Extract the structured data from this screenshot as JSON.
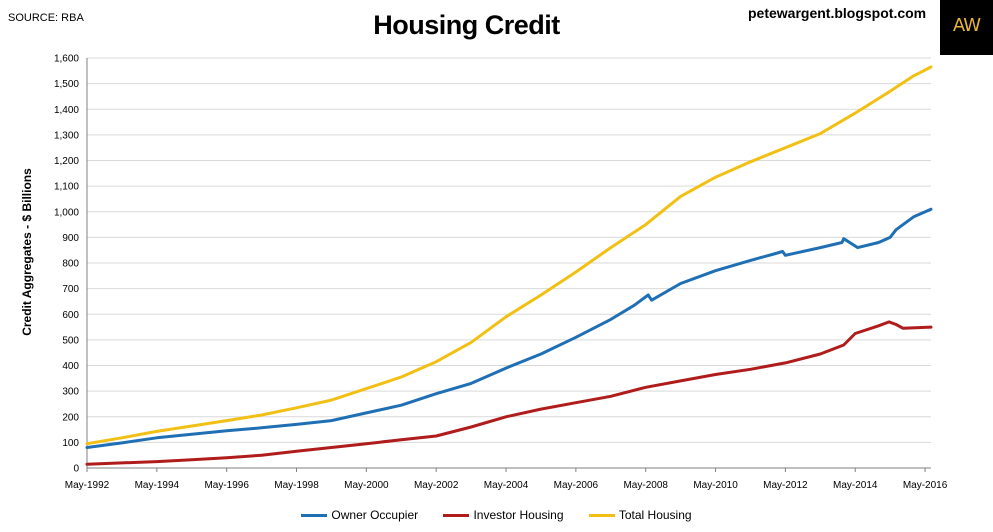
{
  "header": {
    "source": "SOURCE: RBA",
    "title": "Housing Credit",
    "blog": "petewargent.blogspot.com",
    "logo_text": "AW"
  },
  "chart_data": {
    "type": "line",
    "title": "Housing Credit",
    "xlabel": "",
    "ylabel": "Credit Aggregates - $ Billions",
    "ylim": [
      0,
      1600
    ],
    "yticks": [
      0,
      100,
      200,
      300,
      400,
      500,
      600,
      700,
      800,
      900,
      1000,
      1100,
      1200,
      1300,
      1400,
      1500,
      1600
    ],
    "xlim": [
      1992.33,
      2016.5
    ],
    "xticks": [
      {
        "label": "May-1992",
        "x": 1992.33
      },
      {
        "label": "May-1994",
        "x": 1994.33
      },
      {
        "label": "May-1996",
        "x": 1996.33
      },
      {
        "label": "May-1998",
        "x": 1998.33
      },
      {
        "label": "May-2000",
        "x": 2000.33
      },
      {
        "label": "May-2002",
        "x": 2002.33
      },
      {
        "label": "May-2004",
        "x": 2004.33
      },
      {
        "label": "May-2006",
        "x": 2006.33
      },
      {
        "label": "May-2008",
        "x": 2008.33
      },
      {
        "label": "May-2010",
        "x": 2010.33
      },
      {
        "label": "May-2012",
        "x": 2012.33
      },
      {
        "label": "May-2014",
        "x": 2014.33
      },
      {
        "label": "May-2016",
        "x": 2016.33
      }
    ],
    "grid": true,
    "legend_position": "bottom",
    "series": [
      {
        "name": "Owner Occupier",
        "color": "#1f6fb4",
        "x": [
          1992.33,
          1993.33,
          1994.33,
          1995.33,
          1996.33,
          1997.33,
          1998.33,
          1999.33,
          2000.33,
          2001.33,
          2002.33,
          2003.33,
          2004.33,
          2005.33,
          2006.33,
          2007.33,
          2008.0,
          2008.4,
          2008.5,
          2009.33,
          2010.33,
          2011.33,
          2012.0,
          2012.25,
          2012.33,
          2013.33,
          2013.95,
          2014.0,
          2014.4,
          2015.0,
          2015.33,
          2015.5,
          2016.0,
          2016.5
        ],
        "y": [
          80,
          98,
          118,
          132,
          145,
          157,
          170,
          185,
          215,
          245,
          290,
          330,
          390,
          445,
          510,
          580,
          635,
          675,
          655,
          720,
          770,
          810,
          835,
          845,
          830,
          860,
          880,
          895,
          860,
          880,
          900,
          930,
          980,
          1010
        ]
      },
      {
        "name": "Investor Housing",
        "color": "#b01c1c",
        "x": [
          1992.33,
          1993.33,
          1994.33,
          1995.33,
          1996.33,
          1997.33,
          1998.33,
          1999.33,
          2000.33,
          2001.33,
          2002.33,
          2003.33,
          2004.33,
          2005.33,
          2006.33,
          2007.33,
          2008.33,
          2009.33,
          2010.33,
          2011.33,
          2012.33,
          2013.33,
          2014.0,
          2014.33,
          2015.0,
          2015.3,
          2015.5,
          2015.7,
          2016.5
        ],
        "y": [
          15,
          20,
          25,
          32,
          40,
          50,
          65,
          80,
          95,
          110,
          125,
          160,
          200,
          230,
          255,
          280,
          315,
          340,
          365,
          385,
          410,
          445,
          480,
          525,
          555,
          570,
          560,
          545,
          550
        ]
      },
      {
        "name": "Total Housing",
        "color": "#f2c014",
        "x": [
          1992.33,
          1993.33,
          1994.33,
          1995.33,
          1996.33,
          1997.33,
          1998.33,
          1999.33,
          2000.33,
          2001.33,
          2002.33,
          2003.33,
          2004.33,
          2005.33,
          2006.33,
          2007.33,
          2008.33,
          2009.33,
          2010.33,
          2011.33,
          2012.33,
          2013.33,
          2014.33,
          2015.33,
          2016.0,
          2016.5
        ],
        "y": [
          95,
          118,
          143,
          164,
          185,
          207,
          235,
          265,
          310,
          355,
          415,
          490,
          590,
          675,
          765,
          860,
          950,
          1060,
          1135,
          1195,
          1250,
          1305,
          1385,
          1470,
          1530,
          1565
        ]
      }
    ]
  },
  "legend": [
    {
      "label": "Owner Occupier",
      "color": "#1f6fb4"
    },
    {
      "label": "Investor Housing",
      "color": "#b01c1c"
    },
    {
      "label": "Total Housing",
      "color": "#f2c014"
    }
  ]
}
